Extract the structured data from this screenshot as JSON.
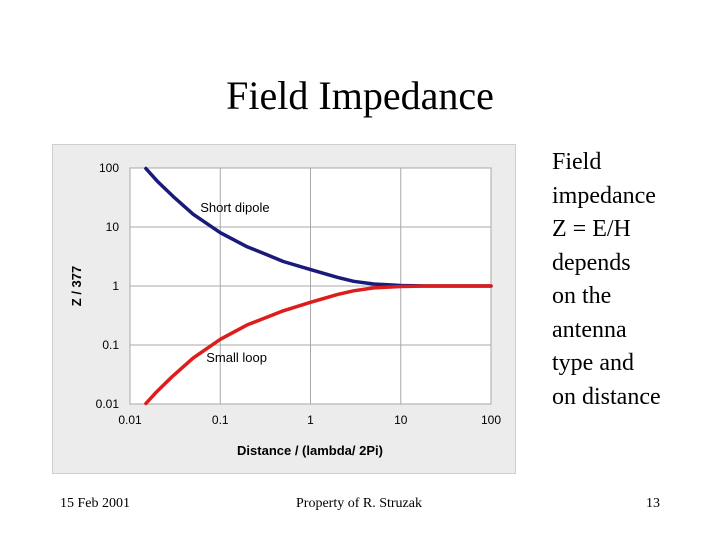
{
  "slide": {
    "title": "Field Impedance",
    "side_text": [
      "Field",
      "impedance",
      "Z = E/H",
      "depends",
      "on the",
      "antenna",
      "type and",
      "on distance"
    ],
    "footer_date": "15 Feb 2001",
    "footer_credit": "Property of R. Struzak",
    "page_number": "13"
  },
  "chart_data": {
    "type": "line",
    "xlabel": "Distance / (lambda/ 2Pi)",
    "ylabel": "Z / 377",
    "x_scale": "log",
    "y_scale": "log",
    "xlim": [
      0.01,
      100
    ],
    "ylim": [
      0.01,
      100
    ],
    "x_ticks": [
      "0.01",
      "0.1",
      "1",
      "10",
      "100"
    ],
    "y_ticks": [
      "100",
      "10",
      "1",
      "0.1",
      "0.01"
    ],
    "grid": true,
    "series": [
      {
        "name": "Short dipole",
        "color": "#1a1a7a",
        "x": [
          0.015,
          0.02,
          0.03,
          0.05,
          0.1,
          0.2,
          0.3,
          0.5,
          1,
          2,
          3,
          5,
          10,
          20,
          30,
          50,
          100
        ],
        "y": [
          98,
          60,
          33,
          16.5,
          8,
          4.6,
          3.6,
          2.6,
          1.9,
          1.4,
          1.2,
          1.08,
          1.02,
          1.0,
          1.0,
          1.0,
          1.0
        ]
      },
      {
        "name": "Small loop",
        "color": "#dd1c1c",
        "x": [
          0.015,
          0.02,
          0.03,
          0.05,
          0.1,
          0.2,
          0.3,
          0.5,
          1,
          2,
          3,
          5,
          10,
          20,
          30,
          50,
          100
        ],
        "y": [
          0.0102,
          0.0165,
          0.03,
          0.06,
          0.125,
          0.22,
          0.28,
          0.38,
          0.53,
          0.72,
          0.83,
          0.93,
          0.98,
          1.0,
          1.0,
          1.0,
          1.0
        ]
      }
    ]
  }
}
